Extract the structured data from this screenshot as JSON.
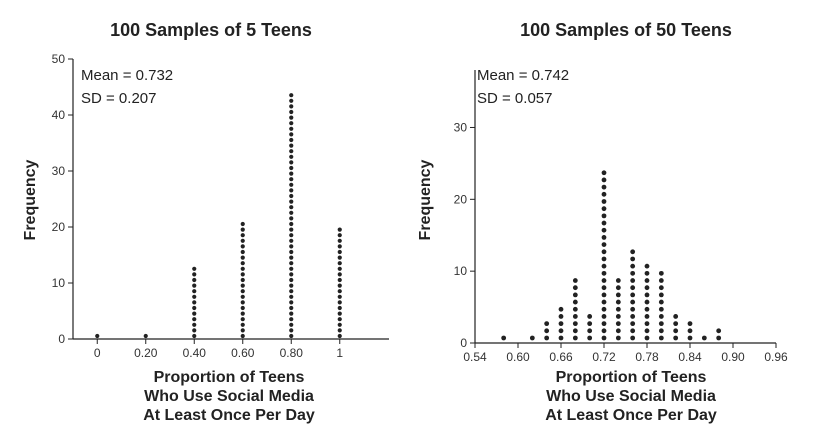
{
  "chart_data": [
    {
      "type": "dotplot",
      "title": "100 Samples of 5 Teens",
      "xlabel": [
        "Proportion of Teens",
        "Who Use Social Media",
        "At Least Once Per Day"
      ],
      "ylabel": "Frequency",
      "stats": [
        "Mean = 0.732",
        "SD = 0.207"
      ],
      "xlim": [
        -0.1,
        1.1
      ],
      "ylim": [
        0,
        50
      ],
      "xticks": [
        0,
        0.2,
        0.4,
        0.6,
        0.8,
        1.0
      ],
      "xtick_labels": [
        "0",
        "0.20",
        "0.40",
        "0.60",
        "0.80",
        "1"
      ],
      "yticks": [
        0,
        10,
        20,
        30,
        40,
        50
      ],
      "x": [
        0,
        0.2,
        0.4,
        0.6,
        0.8,
        1.0
      ],
      "counts": [
        1,
        1,
        13,
        21,
        44,
        20
      ]
    },
    {
      "type": "dotplot",
      "title": "100 Samples of 50 Teens",
      "xlabel": [
        "Proportion of Teens",
        "Who Use Social Media",
        "At Least Once Per Day"
      ],
      "ylabel": "Frequency",
      "stats": [
        "Mean = 0.742",
        "SD = 0.057"
      ],
      "xlim": [
        0.54,
        0.96
      ],
      "ylim": [
        0,
        38
      ],
      "xticks": [
        0.54,
        0.6,
        0.66,
        0.72,
        0.78,
        0.84,
        0.9,
        0.96
      ],
      "xtick_labels": [
        "0.54",
        "0.60",
        "0.66",
        "0.72",
        "0.78",
        "0.84",
        "0.90",
        "0.96"
      ],
      "yticks": [
        0,
        10,
        20,
        30
      ],
      "x": [
        0.58,
        0.62,
        0.64,
        0.66,
        0.68,
        0.7,
        0.72,
        0.74,
        0.76,
        0.78,
        0.8,
        0.82,
        0.84,
        0.86,
        0.88
      ],
      "counts": [
        1,
        1,
        3,
        5,
        9,
        4,
        24,
        9,
        13,
        11,
        10,
        4,
        3,
        1,
        2
      ]
    }
  ]
}
